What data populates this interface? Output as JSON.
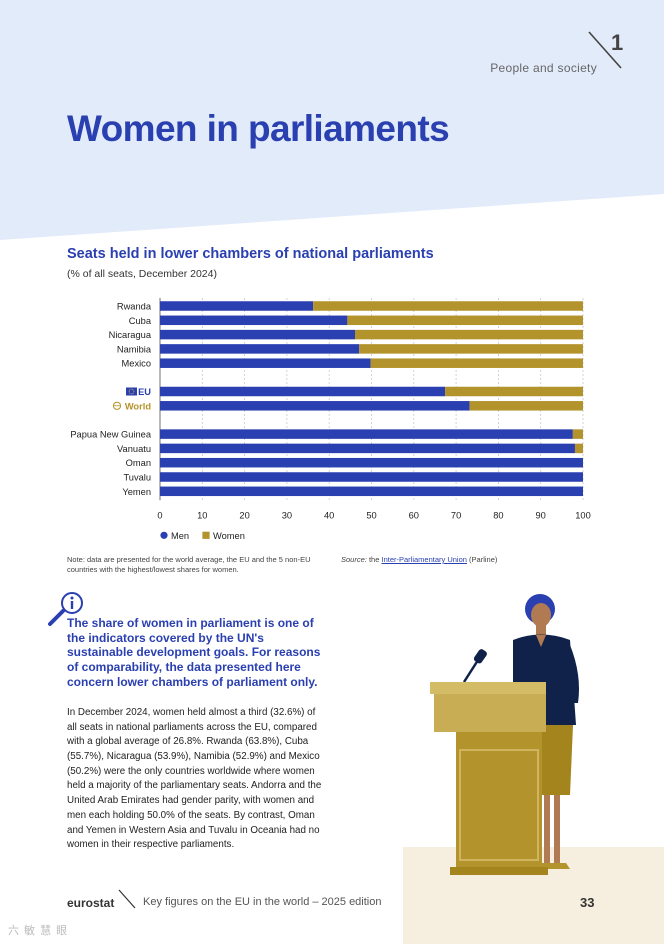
{
  "header": {
    "chapter_number": "1",
    "chapter_label": "People and society"
  },
  "page_title": "Women in parliaments",
  "chart": {
    "title": "Seats held in lower chambers of national parliaments",
    "subtitle": "(% of all seats, December 2024)"
  },
  "chart_data": {
    "type": "bar",
    "orientation": "horizontal",
    "stacked": true,
    "title": "Seats held in lower chambers of national parliaments",
    "subtitle": "(% of all seats, December 2024)",
    "categories": [
      "Rwanda",
      "Cuba",
      "Nicaragua",
      "Namibia",
      "Mexico",
      "EU",
      "World",
      "Papua New Guinea",
      "Vanuatu",
      "Oman",
      "Tuvalu",
      "Yemen"
    ],
    "groups": [
      5,
      2,
      5
    ],
    "series": [
      {
        "name": "Men",
        "color": "#2a3fb0",
        "values": [
          36.2,
          44.3,
          46.1,
          47.1,
          49.8,
          67.4,
          73.2,
          97.6,
          98.1,
          100,
          100,
          100
        ]
      },
      {
        "name": "Women",
        "color": "#b3932b",
        "values": [
          63.8,
          55.7,
          53.9,
          52.9,
          50.2,
          32.6,
          26.8,
          2.4,
          1.9,
          0,
          0,
          0
        ]
      }
    ],
    "xlim": [
      0,
      100
    ],
    "xticks": [
      0,
      10,
      20,
      30,
      40,
      50,
      60,
      70,
      80,
      90,
      100
    ],
    "legend": [
      "Men",
      "Women"
    ],
    "legend_position": "bottom-left"
  },
  "note": "Note: data are presented for the world average, the EU and the 5 non-EU countries with the highest/lowest shares for women.",
  "source": {
    "label": "Source:",
    "prefix": "the",
    "link_text": "Inter-Parliamentary Union",
    "suffix": "(Parline)"
  },
  "highlight": "The share of women in parliament is one of the indicators covered by the UN's sustainable development goals. For reasons of comparability, the data presented here concern lower chambers of parliament only.",
  "body_text": "In December 2024, women held almost a third (32.6%) of all seats in national parliaments across the EU, compared with a global average of 26.8%. Rwanda (63.8%), Cuba (55.7%), Nicaragua (53.9%), Namibia (52.9%) and Mexico (50.2%) were the only countries worldwide where women held a majority of the parliamentary seats. Andorra and the United Arab Emirates had gender parity, with women and men each holding 50.0% of the seats. By contrast, Oman and Yemen in Western Asia and Tuvalu in Oceania had no women in their respective parliaments.",
  "footer": {
    "brand": "eurostat",
    "edition": "Key figures on the EU in the world – 2025 edition",
    "page_number": "33"
  },
  "watermark": "六 敏 慧 眼",
  "colors": {
    "accent_blue": "#2a3fb0",
    "gold": "#b3932b",
    "hero_bg": "#e2ebfa",
    "cream": "#f6efdf"
  }
}
